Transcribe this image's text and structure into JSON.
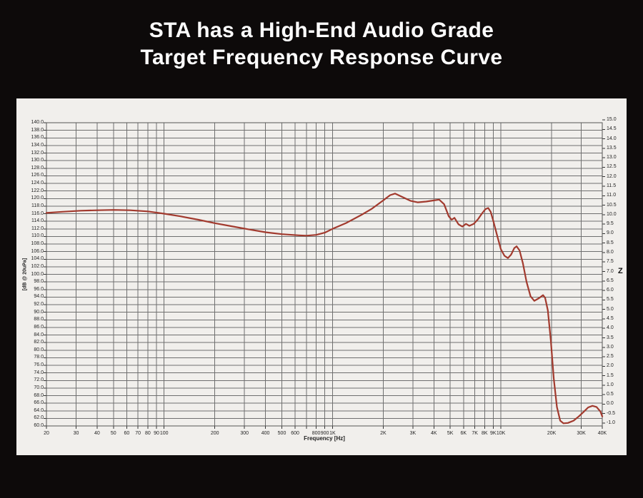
{
  "page": {
    "background_color": "#0d0a0a"
  },
  "title": {
    "line1": "STA has a High-End Audio Grade",
    "line2": "Target Frequency Response Curve",
    "color": "#ffffff"
  },
  "chart_data": {
    "type": "line",
    "xlabel": "Frequency [Hz]",
    "ylabel": "[dB @ 20uPa]",
    "x_scale": "log",
    "x_range": [
      20,
      40000
    ],
    "y_left_axis": {
      "min": 60,
      "max": 140,
      "step": 2
    },
    "y_right_axis": {
      "min": -1,
      "max": 15,
      "step": 0.5,
      "marker": "Z"
    },
    "grid": true,
    "legend": "none",
    "x_gridlines": [
      20,
      30,
      40,
      50,
      60,
      70,
      80,
      90,
      100,
      200,
      300,
      400,
      500,
      600,
      700,
      800,
      900,
      1000,
      2000,
      3000,
      4000,
      5000,
      6000,
      7000,
      8000,
      9000,
      10000,
      20000,
      30000,
      40000
    ],
    "x_ticks": [
      {
        "label": "20",
        "value": 20
      },
      {
        "label": "30",
        "value": 30
      },
      {
        "label": "40",
        "value": 40
      },
      {
        "label": "50",
        "value": 50
      },
      {
        "label": "60",
        "value": 60
      },
      {
        "label": "70",
        "value": 70
      },
      {
        "label": "80",
        "value": 80
      },
      {
        "label": "90",
        "value": 90
      },
      {
        "label": "100",
        "value": 100
      },
      {
        "label": "200",
        "value": 200
      },
      {
        "label": "300",
        "value": 300
      },
      {
        "label": "400",
        "value": 400
      },
      {
        "label": "500",
        "value": 500
      },
      {
        "label": "600",
        "value": 600
      },
      {
        "label": "800",
        "value": 800
      },
      {
        "label": "900",
        "value": 900
      },
      {
        "label": "1K",
        "value": 1000
      },
      {
        "label": "2K",
        "value": 2000
      },
      {
        "label": "3K",
        "value": 3000
      },
      {
        "label": "4K",
        "value": 4000
      },
      {
        "label": "5K",
        "value": 5000
      },
      {
        "label": "6K",
        "value": 6000
      },
      {
        "label": "7K",
        "value": 7000
      },
      {
        "label": "8K",
        "value": 8000
      },
      {
        "label": "9K",
        "value": 9000
      },
      {
        "label": "10K",
        "value": 10000
      },
      {
        "label": "20K",
        "value": 20000
      },
      {
        "label": "30K",
        "value": 30000
      },
      {
        "label": "40K",
        "value": 40000
      }
    ],
    "colors": {
      "curve": "#a23a2e",
      "grid": "#6f6f6f",
      "panel": "#f1efec",
      "axis_text": "#1f1f1f",
      "border": "#555555"
    },
    "series": [
      {
        "name": "Target Frequency Response Curve",
        "points": [
          [
            20,
            116.2
          ],
          [
            25,
            116.5
          ],
          [
            32,
            116.8
          ],
          [
            40,
            116.9
          ],
          [
            50,
            117
          ],
          [
            63,
            116.9
          ],
          [
            80,
            116.6
          ],
          [
            100,
            116
          ],
          [
            125,
            115.3
          ],
          [
            160,
            114.4
          ],
          [
            200,
            113.5
          ],
          [
            250,
            112.7
          ],
          [
            315,
            111.9
          ],
          [
            400,
            111.1
          ],
          [
            500,
            110.6
          ],
          [
            630,
            110.3
          ],
          [
            700,
            110.2
          ],
          [
            800,
            110.4
          ],
          [
            900,
            111
          ],
          [
            1000,
            112
          ],
          [
            1200,
            113.5
          ],
          [
            1500,
            115.8
          ],
          [
            1700,
            117.2
          ],
          [
            2000,
            119.5
          ],
          [
            2200,
            120.9
          ],
          [
            2350,
            121.3
          ],
          [
            2600,
            120.4
          ],
          [
            2900,
            119.4
          ],
          [
            3200,
            119
          ],
          [
            3600,
            119.2
          ],
          [
            4000,
            119.5
          ],
          [
            4300,
            119.7
          ],
          [
            4600,
            118.5
          ],
          [
            4900,
            115.3
          ],
          [
            5100,
            114.4
          ],
          [
            5300,
            114.9
          ],
          [
            5600,
            113.2
          ],
          [
            5900,
            112.6
          ],
          [
            6200,
            113.3
          ],
          [
            6500,
            112.8
          ],
          [
            6900,
            113.3
          ],
          [
            7300,
            114.5
          ],
          [
            7700,
            116
          ],
          [
            8100,
            117.2
          ],
          [
            8400,
            117.5
          ],
          [
            8700,
            116.5
          ],
          [
            9000,
            114.2
          ],
          [
            9500,
            110.2
          ],
          [
            10000,
            106.6
          ],
          [
            10500,
            104.9
          ],
          [
            11000,
            104.3
          ],
          [
            11500,
            105.2
          ],
          [
            12000,
            106.9
          ],
          [
            12400,
            107.4
          ],
          [
            12900,
            106.3
          ],
          [
            13500,
            103
          ],
          [
            14200,
            98
          ],
          [
            15000,
            94.2
          ],
          [
            15800,
            93
          ],
          [
            16800,
            93.7
          ],
          [
            17800,
            94.5
          ],
          [
            18300,
            93.8
          ],
          [
            19000,
            90.5
          ],
          [
            19800,
            82.5
          ],
          [
            20600,
            72.5
          ],
          [
            21500,
            65
          ],
          [
            22500,
            61.4
          ],
          [
            23500,
            60.7
          ],
          [
            25000,
            60.8
          ],
          [
            27000,
            61.4
          ],
          [
            29000,
            62.5
          ],
          [
            31000,
            63.7
          ],
          [
            33000,
            64.9
          ],
          [
            35000,
            65.3
          ],
          [
            37000,
            65
          ],
          [
            39000,
            63.8
          ],
          [
            40000,
            62.5
          ]
        ]
      }
    ]
  }
}
